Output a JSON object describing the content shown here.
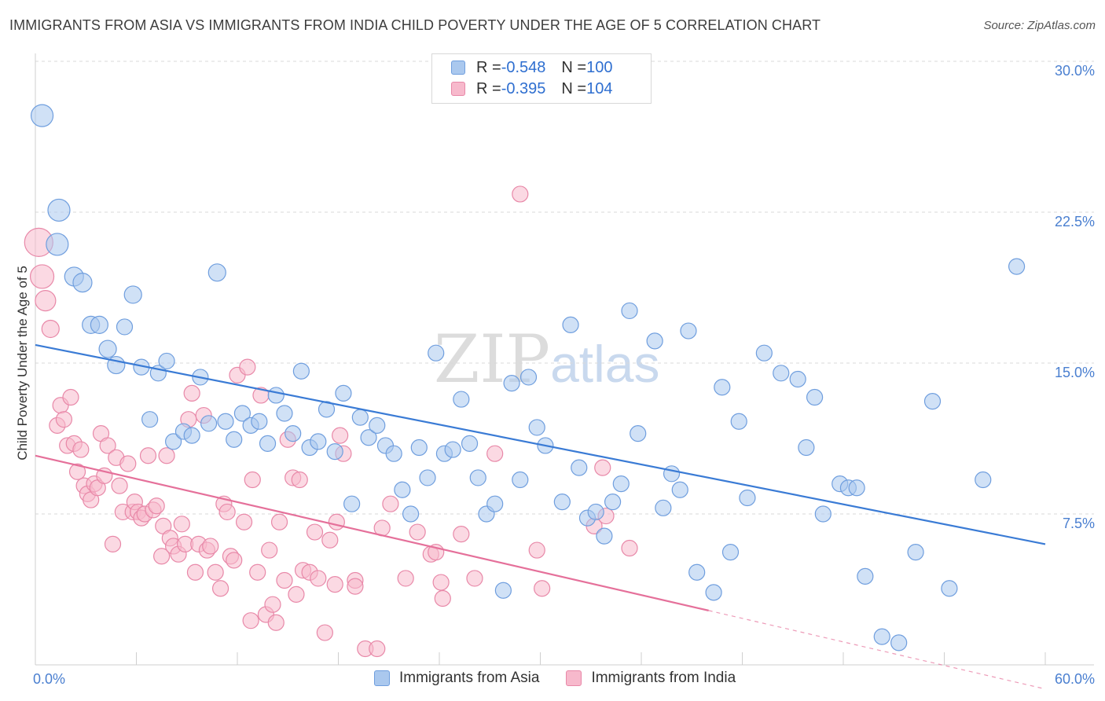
{
  "header": {
    "title": "IMMIGRANTS FROM ASIA VS IMMIGRANTS FROM INDIA CHILD POVERTY UNDER THE AGE OF 5 CORRELATION CHART",
    "source": "Source: ZipAtlas.com"
  },
  "watermark": {
    "zip": "ZIP",
    "atlas": "atlas"
  },
  "legend_top": {
    "rows": [
      {
        "r_label": "R = ",
        "r_value": "-0.548",
        "n_label": "N = ",
        "n_value": "100"
      },
      {
        "r_label": "R = ",
        "r_value": "-0.395",
        "n_label": "N = ",
        "n_value": "104"
      }
    ]
  },
  "colors": {
    "asia_fill": "#aac8ee",
    "asia_stroke": "#6f9ede",
    "asia_line": "#3a7bd5",
    "india_fill": "#f7b9cc",
    "india_stroke": "#e888a8",
    "india_line": "#e5709a",
    "grid": "#d9d9d9",
    "axis_text": "#4a7fd0"
  },
  "chart_data": {
    "type": "scatter",
    "title": "IMMIGRANTS FROM ASIA VS IMMIGRANTS FROM INDIA CHILD POVERTY UNDER THE AGE OF 5 CORRELATION CHART",
    "xlabel": "",
    "ylabel": "Child Poverty Under the Age of 5",
    "xlim": [
      0,
      60
    ],
    "ylim": [
      0,
      30
    ],
    "x_tick_labels": [
      "0.0%",
      "60.0%"
    ],
    "y_ticks": [
      7.5,
      15.0,
      22.5,
      30.0
    ],
    "y_tick_labels": [
      "7.5%",
      "15.0%",
      "22.5%",
      "30.0%"
    ],
    "grid": "horizontal dashed",
    "legend_placement": "bottom",
    "series": [
      {
        "name": "Immigrants from Asia",
        "r": -0.548,
        "n": 100,
        "trend": {
          "x0": 0,
          "y0": 15.9,
          "x1": 60,
          "y1": 6.0
        },
        "points": [
          [
            0.4,
            27.3,
            14
          ],
          [
            1.4,
            22.6,
            14
          ],
          [
            1.3,
            20.9,
            14
          ],
          [
            2.3,
            19.3,
            12
          ],
          [
            2.8,
            19.0,
            12
          ],
          [
            3.3,
            16.9,
            11
          ],
          [
            3.8,
            16.9,
            11
          ],
          [
            4.3,
            15.7,
            11
          ],
          [
            4.8,
            14.9,
            11
          ],
          [
            5.3,
            16.8,
            10
          ],
          [
            5.8,
            18.4,
            11
          ],
          [
            6.3,
            14.8,
            10
          ],
          [
            6.8,
            12.2,
            10
          ],
          [
            7.3,
            14.5,
            10
          ],
          [
            7.8,
            15.1,
            10
          ],
          [
            8.2,
            11.1,
            10
          ],
          [
            8.8,
            11.6,
            10
          ],
          [
            9.3,
            11.4,
            10
          ],
          [
            9.8,
            14.3,
            10
          ],
          [
            10.3,
            12.0,
            10
          ],
          [
            10.8,
            19.5,
            11
          ],
          [
            11.3,
            12.1,
            10
          ],
          [
            11.8,
            11.2,
            10
          ],
          [
            12.3,
            12.5,
            10
          ],
          [
            12.8,
            11.9,
            10
          ],
          [
            13.3,
            12.1,
            10
          ],
          [
            13.8,
            11.0,
            10
          ],
          [
            14.3,
            13.4,
            10
          ],
          [
            14.8,
            12.5,
            10
          ],
          [
            15.3,
            11.5,
            10
          ],
          [
            15.8,
            14.6,
            10
          ],
          [
            16.3,
            10.8,
            10
          ],
          [
            16.8,
            11.1,
            10
          ],
          [
            17.3,
            12.7,
            10
          ],
          [
            17.8,
            10.6,
            10
          ],
          [
            18.3,
            13.5,
            10
          ],
          [
            18.8,
            8.0,
            10
          ],
          [
            19.3,
            12.3,
            10
          ],
          [
            19.8,
            11.3,
            10
          ],
          [
            20.3,
            11.9,
            10
          ],
          [
            20.8,
            10.9,
            10
          ],
          [
            21.3,
            10.5,
            10
          ],
          [
            21.8,
            8.7,
            10
          ],
          [
            22.3,
            7.5,
            10
          ],
          [
            22.8,
            10.8,
            10
          ],
          [
            23.3,
            9.3,
            10
          ],
          [
            23.8,
            15.5,
            10
          ],
          [
            24.3,
            10.5,
            10
          ],
          [
            24.8,
            10.7,
            10
          ],
          [
            25.3,
            13.2,
            10
          ],
          [
            25.8,
            11.0,
            10
          ],
          [
            26.3,
            9.3,
            10
          ],
          [
            26.8,
            7.5,
            10
          ],
          [
            27.3,
            8.0,
            10
          ],
          [
            27.8,
            3.7,
            10
          ],
          [
            28.3,
            14.0,
            10
          ],
          [
            28.8,
            9.2,
            10
          ],
          [
            29.3,
            14.3,
            10
          ],
          [
            29.8,
            11.8,
            10
          ],
          [
            30.3,
            10.9,
            10
          ],
          [
            31.3,
            8.1,
            10
          ],
          [
            31.8,
            16.9,
            10
          ],
          [
            32.3,
            9.8,
            10
          ],
          [
            32.8,
            7.3,
            10
          ],
          [
            33.3,
            7.6,
            10
          ],
          [
            33.8,
            6.4,
            10
          ],
          [
            34.3,
            8.1,
            10
          ],
          [
            34.8,
            9.0,
            10
          ],
          [
            35.3,
            17.6,
            10
          ],
          [
            35.8,
            11.5,
            10
          ],
          [
            36.8,
            16.1,
            10
          ],
          [
            37.3,
            7.8,
            10
          ],
          [
            37.8,
            9.5,
            10
          ],
          [
            38.3,
            8.7,
            10
          ],
          [
            38.8,
            16.6,
            10
          ],
          [
            39.3,
            4.6,
            10
          ],
          [
            40.3,
            3.6,
            10
          ],
          [
            40.8,
            13.8,
            10
          ],
          [
            41.3,
            5.6,
            10
          ],
          [
            41.8,
            12.1,
            10
          ],
          [
            42.3,
            8.3,
            10
          ],
          [
            43.3,
            15.5,
            10
          ],
          [
            44.3,
            14.5,
            10
          ],
          [
            45.3,
            14.2,
            10
          ],
          [
            45.8,
            10.8,
            10
          ],
          [
            46.3,
            13.3,
            10
          ],
          [
            46.8,
            7.5,
            10
          ],
          [
            47.8,
            9.0,
            10
          ],
          [
            48.3,
            8.8,
            10
          ],
          [
            48.8,
            8.8,
            10
          ],
          [
            49.3,
            4.4,
            10
          ],
          [
            50.3,
            1.4,
            10
          ],
          [
            51.3,
            1.1,
            10
          ],
          [
            52.3,
            5.6,
            10
          ],
          [
            53.3,
            13.1,
            10
          ],
          [
            54.3,
            3.8,
            10
          ],
          [
            56.3,
            9.2,
            10
          ],
          [
            58.3,
            19.8,
            10
          ]
        ]
      },
      {
        "name": "Immigrants from India",
        "r": -0.395,
        "n": 104,
        "trend": {
          "x0": 0,
          "y0": 10.4,
          "x1": 40.0,
          "y1": 2.7
        },
        "trend_dashed": {
          "x0": 40.0,
          "y0": 2.7,
          "x1": 60,
          "y1": -1.2
        },
        "points": [
          [
            0.2,
            21.0,
            18
          ],
          [
            0.4,
            19.3,
            15
          ],
          [
            0.6,
            18.1,
            13
          ],
          [
            0.9,
            16.7,
            11
          ],
          [
            1.3,
            11.9,
            10
          ],
          [
            1.5,
            12.9,
            10
          ],
          [
            1.7,
            12.2,
            10
          ],
          [
            1.9,
            10.9,
            10
          ],
          [
            2.1,
            13.3,
            10
          ],
          [
            2.3,
            11.0,
            10
          ],
          [
            2.5,
            9.6,
            10
          ],
          [
            2.7,
            10.7,
            10
          ],
          [
            2.9,
            8.9,
            10
          ],
          [
            3.1,
            8.5,
            10
          ],
          [
            3.3,
            8.2,
            10
          ],
          [
            3.5,
            9.0,
            10
          ],
          [
            3.7,
            8.8,
            10
          ],
          [
            3.9,
            11.5,
            10
          ],
          [
            4.1,
            9.4,
            10
          ],
          [
            4.3,
            10.9,
            10
          ],
          [
            4.6,
            6.0,
            10
          ],
          [
            4.8,
            10.3,
            10
          ],
          [
            5.0,
            8.9,
            10
          ],
          [
            5.2,
            7.6,
            10
          ],
          [
            5.5,
            10.0,
            10
          ],
          [
            5.8,
            7.6,
            10
          ],
          [
            5.9,
            8.1,
            10
          ],
          [
            6.1,
            7.6,
            10
          ],
          [
            6.3,
            7.3,
            10
          ],
          [
            6.5,
            7.5,
            10
          ],
          [
            6.7,
            10.4,
            10
          ],
          [
            7.0,
            7.7,
            10
          ],
          [
            7.2,
            7.9,
            10
          ],
          [
            7.5,
            5.4,
            10
          ],
          [
            7.6,
            6.9,
            10
          ],
          [
            7.8,
            10.4,
            10
          ],
          [
            8.0,
            6.3,
            10
          ],
          [
            8.2,
            5.9,
            10
          ],
          [
            8.5,
            5.5,
            10
          ],
          [
            8.7,
            7.0,
            10
          ],
          [
            8.9,
            6.0,
            10
          ],
          [
            9.1,
            12.2,
            10
          ],
          [
            9.3,
            13.5,
            10
          ],
          [
            9.5,
            4.6,
            10
          ],
          [
            9.7,
            6.0,
            10
          ],
          [
            10.0,
            12.4,
            10
          ],
          [
            10.2,
            5.7,
            10
          ],
          [
            10.4,
            5.9,
            10
          ],
          [
            10.7,
            4.6,
            10
          ],
          [
            11.0,
            3.8,
            10
          ],
          [
            11.2,
            8.0,
            10
          ],
          [
            11.4,
            7.6,
            10
          ],
          [
            11.6,
            5.4,
            10
          ],
          [
            11.8,
            5.2,
            10
          ],
          [
            12.0,
            14.4,
            10
          ],
          [
            12.4,
            7.1,
            10
          ],
          [
            12.6,
            14.8,
            10
          ],
          [
            12.8,
            2.2,
            10
          ],
          [
            12.9,
            9.2,
            10
          ],
          [
            13.2,
            4.6,
            10
          ],
          [
            13.4,
            13.4,
            10
          ],
          [
            13.7,
            2.5,
            10
          ],
          [
            13.9,
            5.7,
            10
          ],
          [
            14.1,
            3.0,
            10
          ],
          [
            14.3,
            2.1,
            10
          ],
          [
            14.5,
            7.1,
            10
          ],
          [
            14.8,
            4.2,
            10
          ],
          [
            15.0,
            11.2,
            10
          ],
          [
            15.3,
            9.3,
            10
          ],
          [
            15.5,
            3.5,
            10
          ],
          [
            15.7,
            9.2,
            10
          ],
          [
            15.9,
            4.7,
            10
          ],
          [
            16.3,
            4.6,
            10
          ],
          [
            16.6,
            6.6,
            10
          ],
          [
            16.8,
            4.3,
            10
          ],
          [
            17.2,
            1.6,
            10
          ],
          [
            17.5,
            6.2,
            10
          ],
          [
            17.8,
            4.0,
            10
          ],
          [
            17.9,
            7.1,
            10
          ],
          [
            18.1,
            11.4,
            10
          ],
          [
            18.3,
            10.5,
            10
          ],
          [
            19.0,
            4.2,
            10
          ],
          [
            19.0,
            3.9,
            10
          ],
          [
            19.6,
            0.8,
            10
          ],
          [
            20.3,
            0.8,
            10
          ],
          [
            20.6,
            6.8,
            10
          ],
          [
            21.1,
            8.0,
            10
          ],
          [
            22.0,
            4.3,
            10
          ],
          [
            22.7,
            6.6,
            10
          ],
          [
            23.5,
            5.5,
            10
          ],
          [
            23.8,
            5.6,
            10
          ],
          [
            24.1,
            4.1,
            10
          ],
          [
            24.2,
            3.3,
            10
          ],
          [
            25.3,
            6.5,
            10
          ],
          [
            26.1,
            4.3,
            10
          ],
          [
            27.3,
            10.5,
            10
          ],
          [
            28.8,
            23.4,
            10
          ],
          [
            29.8,
            5.7,
            10
          ],
          [
            30.1,
            3.8,
            10
          ],
          [
            33.2,
            6.9,
            10
          ],
          [
            33.7,
            9.8,
            10
          ],
          [
            33.9,
            7.4,
            10
          ],
          [
            35.3,
            5.8,
            10
          ]
        ]
      }
    ]
  },
  "legend_bottom": {
    "items": [
      {
        "label": "Immigrants from Asia"
      },
      {
        "label": "Immigrants from India"
      }
    ]
  }
}
